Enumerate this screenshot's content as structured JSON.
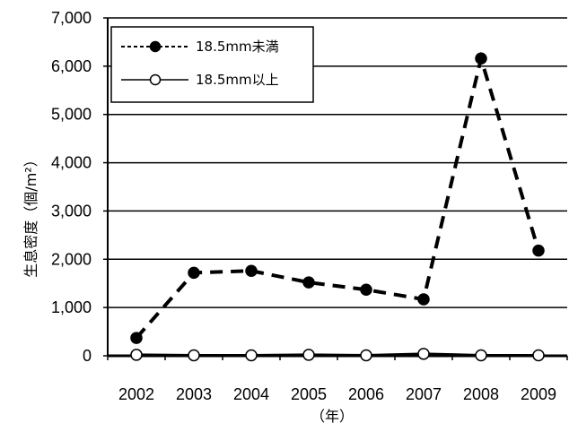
{
  "chart_data": {
    "type": "line",
    "title": "",
    "xlabel": "（年）",
    "ylabel": "生息密度（個/m²）",
    "categories": [
      "2002",
      "2003",
      "2004",
      "2005",
      "2006",
      "2007",
      "2008",
      "2009"
    ],
    "series": [
      {
        "name": "18.5mm未満",
        "values": [
          370,
          1720,
          1760,
          1520,
          1370,
          1170,
          6160,
          2180
        ],
        "line_style": "dashed",
        "marker": "filled-circle",
        "color": "#000000"
      },
      {
        "name": "18.5mm以上",
        "values": [
          20,
          10,
          10,
          20,
          10,
          40,
          10,
          10
        ],
        "line_style": "solid",
        "marker": "open-circle",
        "color": "#000000"
      }
    ],
    "y_ticks": [
      "0",
      "1,000",
      "2,000",
      "3,000",
      "4,000",
      "5,000",
      "6,000",
      "7,000"
    ],
    "ylim": [
      0,
      7000
    ],
    "grid": true,
    "legend_position": "top-left"
  }
}
